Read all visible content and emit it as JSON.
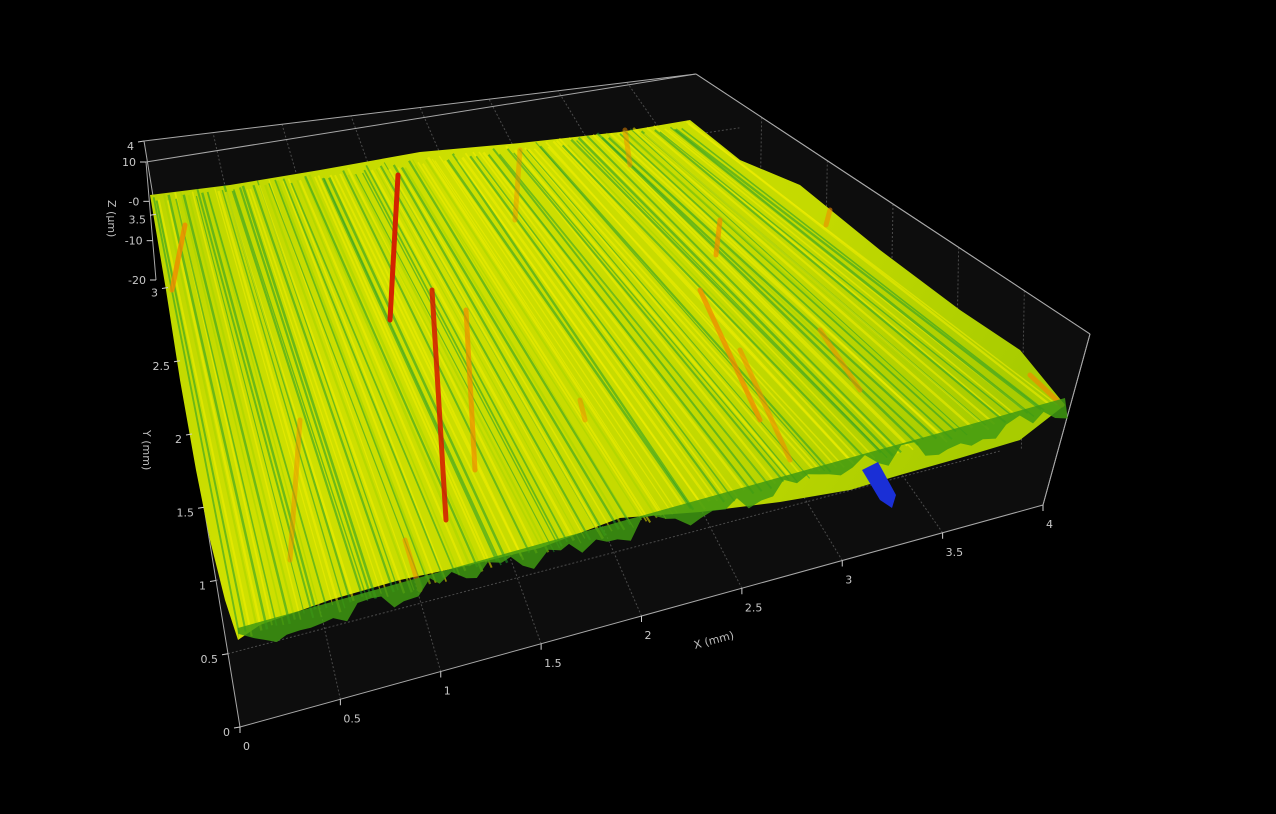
{
  "chart_data": {
    "type": "surface3d",
    "x_axis": {
      "label": "X (mm)",
      "ticks": [
        "0",
        "0.5",
        "1",
        "1.5",
        "2",
        "2.5",
        "3",
        "3.5",
        "4"
      ],
      "range": [
        0,
        4
      ]
    },
    "y_axis": {
      "label": "Y (mm)",
      "ticks": [
        "0",
        "0.5",
        "1",
        "1.5",
        "2",
        "2.5",
        "3",
        "3.5",
        "4"
      ],
      "range": [
        0,
        4
      ]
    },
    "z_axis": {
      "label": "Z (µm)",
      "ticks": [
        "-20",
        "-10",
        "-0",
        "10"
      ],
      "range": [
        -20,
        10
      ]
    },
    "colormap": [
      "#1a2fd6",
      "#1f9a2a",
      "#a6d400",
      "#f2ef00",
      "#f08a00",
      "#d41800"
    ],
    "background": "#000000",
    "floor_color": "#0d0d0d",
    "grid": true
  }
}
